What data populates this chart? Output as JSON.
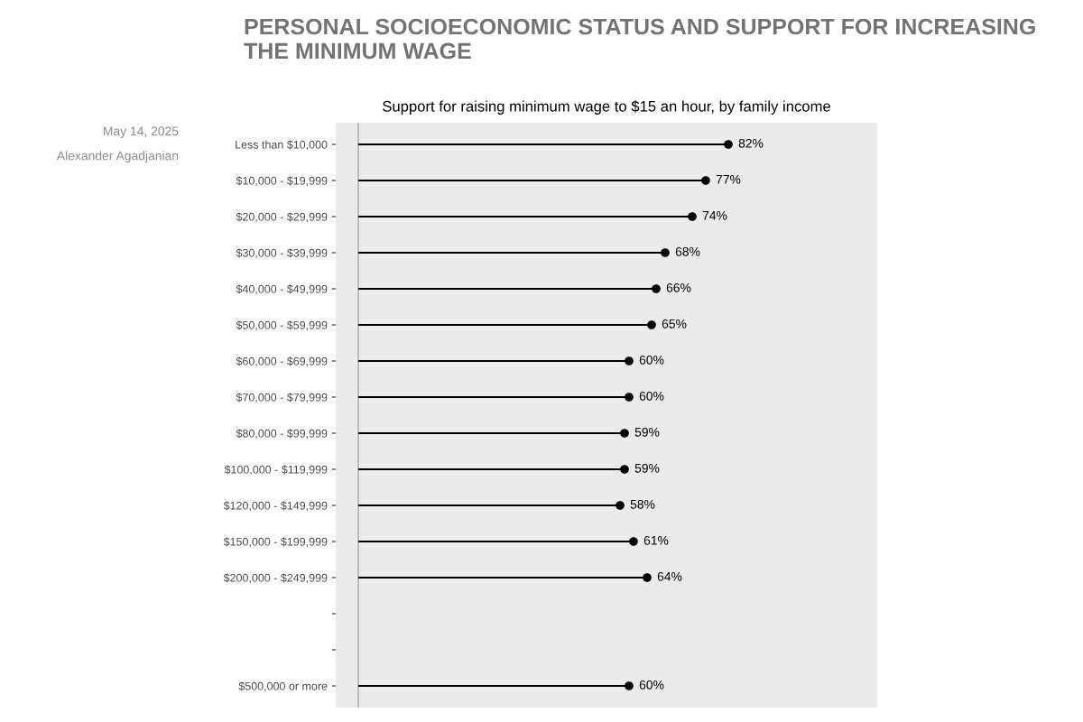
{
  "chart_data": {
    "type": "lollipop",
    "orientation": "horizontal",
    "title": "PERSONAL SOCIOECONOMIC STATUS AND SUPPORT FOR INCREASING THE MINIMUM WAGE",
    "subtitle": "Support for raising minimum wage to $15 an hour, by family income",
    "annotations": [
      "May 14, 2025",
      "Alexander Agadjanian"
    ],
    "categories": [
      "Less than $10,000",
      "$10,000 - $19,999",
      "$20,000 - $29,999",
      "$30,000 - $39,999",
      "$40,000 - $49,999",
      "$50,000 - $59,999",
      "$60,000 - $69,999",
      "$70,000 - $79,999",
      "$80,000 - $99,999",
      "$100,000 - $119,999",
      "$120,000 - $149,999",
      "$150,000 - $199,999",
      "$200,000 - $249,999",
      null,
      null,
      "$500,000 or more"
    ],
    "values": [
      82,
      77,
      74,
      68,
      66,
      65,
      60,
      60,
      59,
      59,
      58,
      61,
      64,
      null,
      null,
      60
    ],
    "value_labels": [
      "82%",
      "77%",
      "74%",
      "68%",
      "66%",
      "65%",
      "60%",
      "60%",
      "59%",
      "59%",
      "58%",
      "61%",
      "64%",
      null,
      null,
      "60%"
    ],
    "color": "#000000",
    "marker": "circle",
    "xlim": [
      -5,
      115
    ],
    "tick_labels": "y",
    "grid": false,
    "ref_lines": [
      {
        "axis": "x",
        "value": 0,
        "color": "#a6a6a6"
      }
    ]
  }
}
